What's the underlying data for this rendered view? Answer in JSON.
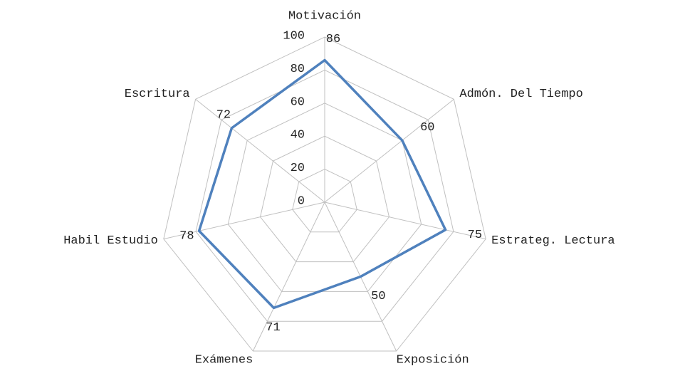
{
  "chart_data": {
    "type": "radar",
    "categories": [
      "Motivación",
      "Admón. Del Tiempo",
      "Estrateg. Lectura",
      "Exposición",
      "Exámenes",
      "Habil Estudio",
      "Escritura"
    ],
    "series": [
      {
        "color": "#4f81bd",
        "values": [
          86,
          60,
          75,
          50,
          71,
          78,
          72
        ]
      }
    ],
    "ylim": [
      0,
      100
    ],
    "yticks": [
      0,
      20,
      40,
      60,
      80,
      100
    ],
    "grid": true
  }
}
